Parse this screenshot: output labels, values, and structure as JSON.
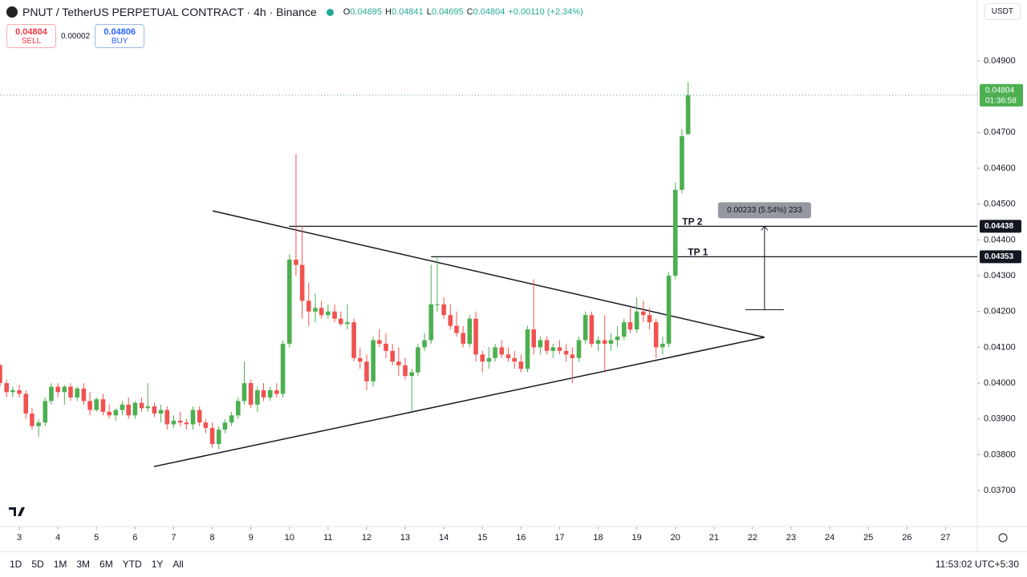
{
  "header": {
    "symbol": "PNUT / TetherUS PERPETUAL CONTRACT · 4h · Binance",
    "ohlc": [
      {
        "k": "O",
        "v": "0.04695"
      },
      {
        "k": "H",
        "v": "0.04841"
      },
      {
        "k": "L",
        "v": "0.04695"
      },
      {
        "k": "C",
        "v": "0.04804"
      }
    ],
    "change": "+0.00110 (+2.34%)"
  },
  "trade": {
    "sell_price": "0.04804",
    "sell": "SELL",
    "spread": "0.00002",
    "buy_price": "0.04806",
    "buy": "BUY"
  },
  "currency": "USDT",
  "ranges": [
    "1D",
    "5D",
    "1M",
    "3M",
    "6M",
    "YTD",
    "1Y",
    "All"
  ],
  "clock": "11:53:02 UTC+5:30",
  "chart_data": {
    "type": "candlestick",
    "up_color": "#4caf50",
    "down_color": "#ef5350",
    "x": [
      2.5,
      2.67,
      2.83,
      3,
      3.17,
      3.33,
      3.5,
      3.67,
      3.83,
      4,
      4.17,
      4.33,
      4.5,
      4.67,
      4.83,
      5,
      5.17,
      5.33,
      5.5,
      5.67,
      5.83,
      6,
      6.17,
      6.33,
      6.5,
      6.67,
      6.83,
      7,
      7.17,
      7.33,
      7.5,
      7.67,
      7.83,
      8,
      8.17,
      8.33,
      8.5,
      8.67,
      8.83,
      9,
      9.17,
      9.33,
      9.5,
      9.67,
      9.83,
      10,
      10.17,
      10.33,
      10.5,
      10.67,
      10.83,
      11,
      11.17,
      11.33,
      11.5,
      11.67,
      11.83,
      12,
      12.17,
      12.33,
      12.5,
      12.67,
      12.83,
      13,
      13.17,
      13.33,
      13.5,
      13.67,
      13.83,
      14,
      14.17,
      14.33,
      14.5,
      14.67,
      14.83,
      15,
      15.17,
      15.33,
      15.5,
      15.67,
      15.83,
      16,
      16.17,
      16.33,
      16.5,
      16.67,
      16.83,
      17,
      17.17,
      17.33,
      17.5,
      17.67,
      17.83,
      18,
      18.17,
      18.33,
      18.5,
      18.67,
      18.83,
      19,
      19.17,
      19.33,
      19.5,
      19.67,
      19.83,
      20,
      20.17,
      20.33
    ],
    "candles": [
      [
        0.0405,
        0.04055,
        0.0399,
        0.04
      ],
      [
        0.04,
        0.0401,
        0.0396,
        0.03975
      ],
      [
        0.03975,
        0.0399,
        0.0396,
        0.0398
      ],
      [
        0.0398,
        0.03995,
        0.0396,
        0.0397
      ],
      [
        0.0397,
        0.0398,
        0.039,
        0.03915
      ],
      [
        0.03915,
        0.0393,
        0.0387,
        0.0388
      ],
      [
        0.0388,
        0.039,
        0.0385,
        0.0389
      ],
      [
        0.0389,
        0.0396,
        0.0388,
        0.0395
      ],
      [
        0.0395,
        0.04,
        0.0394,
        0.0399
      ],
      [
        0.0399,
        0.04,
        0.0396,
        0.03975
      ],
      [
        0.03975,
        0.03995,
        0.0394,
        0.0399
      ],
      [
        0.0399,
        0.04,
        0.0395,
        0.0396
      ],
      [
        0.0396,
        0.0399,
        0.0395,
        0.03985
      ],
      [
        0.03985,
        0.04,
        0.0394,
        0.0395
      ],
      [
        0.0395,
        0.03975,
        0.0391,
        0.03925
      ],
      [
        0.03925,
        0.0396,
        0.0392,
        0.03955
      ],
      [
        0.03955,
        0.0397,
        0.0391,
        0.0392
      ],
      [
        0.0392,
        0.0394,
        0.039,
        0.0391
      ],
      [
        0.0391,
        0.0393,
        0.03895,
        0.03925
      ],
      [
        0.03925,
        0.0395,
        0.0391,
        0.0394
      ],
      [
        0.0394,
        0.0396,
        0.039,
        0.0391
      ],
      [
        0.0391,
        0.0395,
        0.039,
        0.03945
      ],
      [
        0.03945,
        0.0396,
        0.0392,
        0.0393
      ],
      [
        0.0393,
        0.04,
        0.0392,
        0.03935
      ],
      [
        0.03935,
        0.03945,
        0.03905,
        0.03915
      ],
      [
        0.03915,
        0.0394,
        0.0389,
        0.03925
      ],
      [
        0.03925,
        0.03935,
        0.0387,
        0.03885
      ],
      [
        0.03885,
        0.0391,
        0.03875,
        0.03895
      ],
      [
        0.03895,
        0.0392,
        0.0388,
        0.0389
      ],
      [
        0.0389,
        0.039,
        0.0387,
        0.03885
      ],
      [
        0.03885,
        0.03935,
        0.0387,
        0.03925
      ],
      [
        0.03925,
        0.03935,
        0.0388,
        0.0389
      ],
      [
        0.0389,
        0.039,
        0.0386,
        0.03875
      ],
      [
        0.03875,
        0.0389,
        0.0382,
        0.0383
      ],
      [
        0.0383,
        0.0388,
        0.03815,
        0.0387
      ],
      [
        0.0387,
        0.039,
        0.0386,
        0.0389
      ],
      [
        0.0389,
        0.0392,
        0.0388,
        0.0391
      ],
      [
        0.0391,
        0.0396,
        0.039,
        0.0395
      ],
      [
        0.0395,
        0.0406,
        0.0394,
        0.04
      ],
      [
        0.04,
        0.0401,
        0.0393,
        0.0394
      ],
      [
        0.0394,
        0.0399,
        0.0392,
        0.0398
      ],
      [
        0.0398,
        0.04,
        0.0395,
        0.0396
      ],
      [
        0.0396,
        0.0399,
        0.0395,
        0.0398
      ],
      [
        0.0398,
        0.04,
        0.0396,
        0.0397
      ],
      [
        0.0397,
        0.0412,
        0.0396,
        0.0411
      ],
      [
        0.0411,
        0.0436,
        0.041,
        0.04345
      ],
      [
        0.04345,
        0.0464,
        0.043,
        0.0433
      ],
      [
        0.0433,
        0.0444,
        0.0418,
        0.0423
      ],
      [
        0.0423,
        0.0428,
        0.0416,
        0.042
      ],
      [
        0.042,
        0.0425,
        0.0417,
        0.0421
      ],
      [
        0.0421,
        0.0423,
        0.0418,
        0.0419
      ],
      [
        0.0419,
        0.0422,
        0.0418,
        0.042
      ],
      [
        0.042,
        0.0422,
        0.0417,
        0.0418
      ],
      [
        0.0418,
        0.042,
        0.0416,
        0.04165
      ],
      [
        0.04165,
        0.0422,
        0.0415,
        0.0417
      ],
      [
        0.0417,
        0.0418,
        0.0406,
        0.0407
      ],
      [
        0.0407,
        0.041,
        0.0404,
        0.0406
      ],
      [
        0.0406,
        0.0408,
        0.0398,
        0.04005
      ],
      [
        0.04005,
        0.0413,
        0.0399,
        0.0412
      ],
      [
        0.0412,
        0.0415,
        0.041,
        0.0411
      ],
      [
        0.0411,
        0.0414,
        0.0407,
        0.0409
      ],
      [
        0.0409,
        0.0411,
        0.0405,
        0.0406
      ],
      [
        0.0406,
        0.041,
        0.0402,
        0.0405
      ],
      [
        0.0405,
        0.0407,
        0.0401,
        0.0402
      ],
      [
        0.0402,
        0.0404,
        0.0392,
        0.0403
      ],
      [
        0.0403,
        0.0411,
        0.0402,
        0.041
      ],
      [
        0.041,
        0.0414,
        0.0409,
        0.0412
      ],
      [
        0.0412,
        0.0433,
        0.0411,
        0.0422
      ],
      [
        0.0422,
        0.0435,
        0.042,
        0.0422
      ],
      [
        0.0422,
        0.0424,
        0.0418,
        0.0419
      ],
      [
        0.0419,
        0.0422,
        0.0415,
        0.0416
      ],
      [
        0.0416,
        0.042,
        0.0413,
        0.0414
      ],
      [
        0.0414,
        0.0416,
        0.041,
        0.0411
      ],
      [
        0.0411,
        0.0419,
        0.041,
        0.0418
      ],
      [
        0.0418,
        0.042,
        0.0406,
        0.0408
      ],
      [
        0.0408,
        0.0409,
        0.0403,
        0.0406
      ],
      [
        0.0406,
        0.041,
        0.0404,
        0.0407
      ],
      [
        0.0407,
        0.0411,
        0.0406,
        0.041
      ],
      [
        0.041,
        0.0412,
        0.0407,
        0.0408
      ],
      [
        0.0408,
        0.041,
        0.0406,
        0.0407
      ],
      [
        0.0407,
        0.0409,
        0.0404,
        0.0406
      ],
      [
        0.0406,
        0.0408,
        0.0403,
        0.0404
      ],
      [
        0.0404,
        0.0416,
        0.0403,
        0.0415
      ],
      [
        0.0415,
        0.0429,
        0.0408,
        0.041
      ],
      [
        0.041,
        0.0413,
        0.0408,
        0.0412
      ],
      [
        0.0412,
        0.0413,
        0.0408,
        0.0409
      ],
      [
        0.0409,
        0.0411,
        0.0407,
        0.041
      ],
      [
        0.041,
        0.0412,
        0.0408,
        0.0409
      ],
      [
        0.0409,
        0.0411,
        0.0406,
        0.0408
      ],
      [
        0.0408,
        0.041,
        0.04,
        0.0407
      ],
      [
        0.0407,
        0.0413,
        0.0406,
        0.0412
      ],
      [
        0.0412,
        0.042,
        0.0411,
        0.0419
      ],
      [
        0.0419,
        0.042,
        0.041,
        0.0411
      ],
      [
        0.0411,
        0.0413,
        0.0409,
        0.0412
      ],
      [
        0.0412,
        0.0419,
        0.0403,
        0.0411
      ],
      [
        0.0411,
        0.0414,
        0.0409,
        0.0412
      ],
      [
        0.0412,
        0.0416,
        0.041,
        0.0413
      ],
      [
        0.0413,
        0.0418,
        0.0412,
        0.0417
      ],
      [
        0.0417,
        0.0421,
        0.0414,
        0.0415
      ],
      [
        0.0415,
        0.0424,
        0.0414,
        0.042
      ],
      [
        0.042,
        0.0423,
        0.0417,
        0.0419
      ],
      [
        0.0419,
        0.0421,
        0.0415,
        0.0417
      ],
      [
        0.0417,
        0.0418,
        0.0407,
        0.041
      ],
      [
        0.041,
        0.0413,
        0.0408,
        0.0411
      ],
      [
        0.0411,
        0.0431,
        0.041,
        0.043
      ],
      [
        0.043,
        0.0456,
        0.0429,
        0.0454
      ],
      [
        0.0454,
        0.0471,
        0.0453,
        0.0469
      ],
      [
        0.04695,
        0.04841,
        0.04695,
        0.04804
      ]
    ],
    "xlim": [
      2.5,
      27.76
    ],
    "xticks": [
      3,
      4,
      5,
      6,
      7,
      8,
      9,
      10,
      11,
      12,
      13,
      14,
      15,
      16,
      17,
      18,
      19,
      20,
      21,
      22,
      23,
      24,
      25,
      26,
      27
    ],
    "ylim": [
      0.03604,
      0.0507
    ],
    "yticks": [
      {
        "value": 0.049,
        "label": "0.04900"
      },
      {
        "value": 0.047,
        "label": "0.04700"
      },
      {
        "value": 0.046,
        "label": "0.04600"
      },
      {
        "value": 0.045,
        "label": "0.04500"
      },
      {
        "value": 0.044,
        "label": "0.04400"
      },
      {
        "value": 0.043,
        "label": "0.04300"
      },
      {
        "value": 0.042,
        "label": "0.04200"
      },
      {
        "value": 0.041,
        "label": "0.04100"
      },
      {
        "value": 0.04,
        "label": "0.04000"
      },
      {
        "value": 0.039,
        "label": "0.03900"
      },
      {
        "value": 0.038,
        "label": "0.03800"
      },
      {
        "value": 0.037,
        "label": "0.03700"
      }
    ],
    "last_price": {
      "value": 0.04804,
      "label": "0.04804",
      "countdown": "01:36:58"
    },
    "levels": [
      {
        "name": "TP 2",
        "value": 0.04438,
        "label": "0.04438",
        "from": 9.99
      },
      {
        "name": "TP 1",
        "value": 0.04353,
        "label": "0.04353",
        "from": 13.67
      }
    ],
    "trendlines": [
      [
        [
          8.01,
          0.04481
        ],
        [
          22.31,
          0.04128
        ]
      ],
      [
        [
          6.49,
          0.03767
        ],
        [
          22.31,
          0.04128
        ]
      ]
    ],
    "measure": {
      "x": 22.31,
      "from": 0.04205,
      "to": 0.04438,
      "label": "0.00233 (5.54%) 233"
    }
  }
}
